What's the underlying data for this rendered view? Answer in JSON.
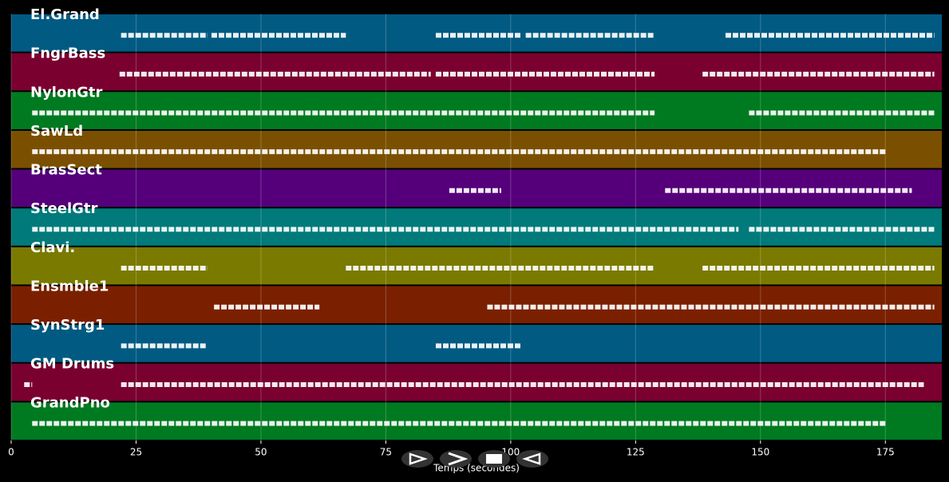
{
  "chart_data": {
    "type": "pianoroll",
    "xlabel": "Temps (secondes)",
    "xlim": [
      0,
      186.3
    ],
    "xticks": [
      0,
      25,
      50,
      75,
      100,
      125,
      150,
      175
    ],
    "grid": true,
    "series": [
      {
        "name": "El.Grand",
        "color": "#005a82",
        "segments": [
          [
            22,
            39.3
          ],
          [
            40.1,
            67
          ],
          [
            85,
            102
          ],
          [
            103,
            128.8
          ],
          [
            143,
            184.8
          ]
        ]
      },
      {
        "name": "FngrBass",
        "color": "#7a0030",
        "segments": [
          [
            21.7,
            84
          ],
          [
            85,
            128.8
          ],
          [
            138.4,
            184.8
          ]
        ]
      },
      {
        "name": "NylonGtr",
        "color": "#007a20",
        "segments": [
          [
            4.2,
            128.8
          ],
          [
            147.7,
            184.8
          ]
        ]
      },
      {
        "name": "SawLd",
        "color": "#7a5000",
        "segments": [
          [
            4.2,
            175.2
          ]
        ]
      },
      {
        "name": "BrasSect",
        "color": "#55007a",
        "segments": [
          [
            87.7,
            98.1
          ],
          [
            130.9,
            180.3
          ]
        ]
      },
      {
        "name": "SteelGtr",
        "color": "#007a7a",
        "segments": [
          [
            4.2,
            145.6
          ],
          [
            147.7,
            184.8
          ]
        ]
      },
      {
        "name": "Clavi.",
        "color": "#7a7a00",
        "segments": [
          [
            22,
            39.3
          ],
          [
            67,
            128.8
          ],
          [
            138.4,
            184.8
          ]
        ]
      },
      {
        "name": "Ensmble1",
        "color": "#7a2000",
        "segments": [
          [
            40.6,
            61.7
          ],
          [
            95.3,
            184.8
          ]
        ]
      },
      {
        "name": "SynStrg1",
        "color": "#005a82",
        "segments": [
          [
            22,
            39
          ],
          [
            85,
            102
          ]
        ]
      },
      {
        "name": "GM Drums",
        "color": "#7a0030",
        "segments": [
          [
            2.6,
            4.2
          ],
          [
            22,
            182.7
          ]
        ]
      },
      {
        "name": "GrandPno",
        "color": "#007a20",
        "segments": [
          [
            4.2,
            175.2
          ]
        ]
      }
    ]
  }
}
